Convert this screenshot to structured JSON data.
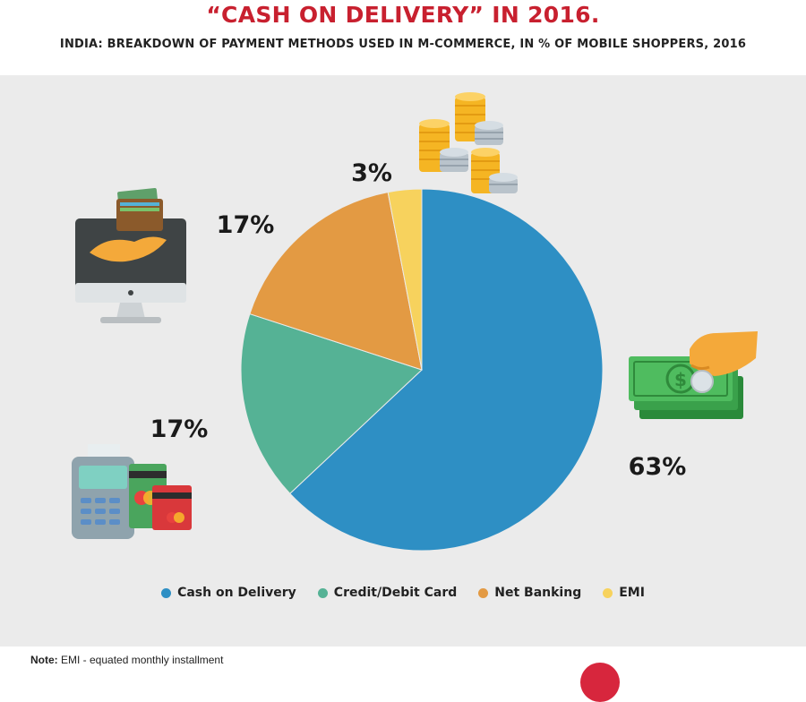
{
  "header": {
    "title": "“CASH ON DELIVERY” IN 2016.",
    "subtitle": "INDIA: BREAKDOWN OF PAYMENT METHODS USED IN M-COMMERCE, IN % OF MOBILE SHOPPERS, 2016"
  },
  "chart_data": {
    "type": "pie",
    "title": "“CASH ON DELIVERY” IN 2016.",
    "subtitle": "INDIA: BREAKDOWN OF PAYMENT METHODS USED IN M-COMMERCE, IN % OF MOBILE SHOPPERS, 2016",
    "categories": [
      "Cash on Delivery",
      "Credit/Debit Card",
      "Net Banking",
      "EMI"
    ],
    "values": [
      63,
      17,
      17,
      3
    ],
    "labels": [
      "63%",
      "17%",
      "17%",
      "3%"
    ],
    "colors": [
      "#2e8fc4",
      "#55b295",
      "#e39a43",
      "#f7d25d"
    ],
    "legend_position": "bottom"
  },
  "legend": {
    "items": [
      {
        "label": "Cash on Delivery",
        "color": "#2e8fc4"
      },
      {
        "label": "Credit/Debit Card",
        "color": "#55b295"
      },
      {
        "label": "Net Banking",
        "color": "#e39a43"
      },
      {
        "label": "EMI",
        "color": "#f7d25d"
      }
    ]
  },
  "icons": [
    "coins-stack-icon",
    "computer-wallet-icon",
    "card-terminal-icon",
    "cash-hand-icon"
  ],
  "footer": {
    "note_label": "Note:",
    "note_text": " EMI - equated monthly installment"
  }
}
